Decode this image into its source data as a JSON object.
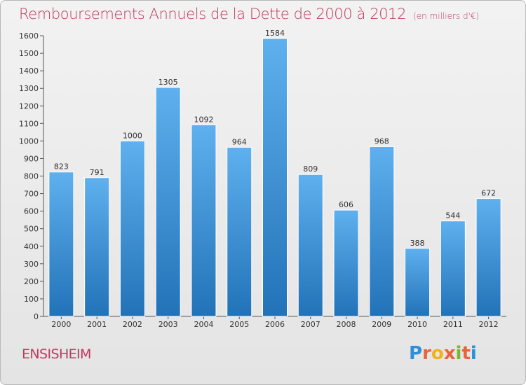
{
  "header": {
    "title": "Remboursements Annuels de la Dette de 2000 à 2012",
    "subtitle": "(en milliers d'€)"
  },
  "footer": {
    "city": "ENSISHEIM",
    "logo_letters": [
      "P",
      "r",
      "o",
      "x",
      "i",
      "t",
      "i"
    ],
    "logo_colors": [
      "#2f8fd8",
      "#e8623a",
      "#f0b21c",
      "#e8623a",
      "#7ab72e",
      "#e8623a",
      "#2f8fd8"
    ]
  },
  "colors": {
    "bar_top": "#5fb0ee",
    "bar_bottom": "#2272b8",
    "title": "#c0395e"
  },
  "chart_data": {
    "type": "bar",
    "title": "Remboursements Annuels de la Dette de 2000 à 2012",
    "subtitle": "(en milliers d'€)",
    "categories": [
      "2000",
      "2001",
      "2002",
      "2003",
      "2004",
      "2005",
      "2006",
      "2007",
      "2008",
      "2009",
      "2010",
      "2011",
      "2012"
    ],
    "values": [
      823,
      791,
      1000,
      1305,
      1092,
      964,
      1584,
      809,
      606,
      968,
      388,
      544,
      672
    ],
    "ylim": [
      0,
      1600
    ],
    "yticks": [
      0,
      100,
      200,
      300,
      400,
      500,
      600,
      700,
      800,
      900,
      1000,
      1100,
      1200,
      1300,
      1400,
      1500,
      1600
    ],
    "grid": false,
    "data_labels": true
  }
}
